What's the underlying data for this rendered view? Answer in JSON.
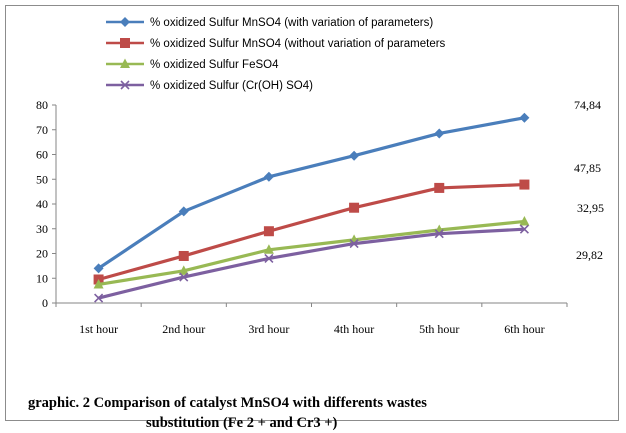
{
  "chart_data": {
    "type": "line",
    "categories": [
      "1st hour",
      "2nd hour",
      "3rd hour",
      "4th hour",
      "5th hour",
      "6th  hour"
    ],
    "ylim": [
      0,
      80
    ],
    "yticks": [
      0,
      10,
      20,
      30,
      40,
      50,
      60,
      70,
      80
    ],
    "grid": false,
    "legend_position": "top",
    "series": [
      {
        "name": "% oxidized Sulfur MnSO4 (with variation of parameters)",
        "color": "#4a7ebb",
        "marker": "diamond",
        "values": [
          14,
          37,
          51,
          59.5,
          68.5,
          74.84
        ],
        "end_label": "74,84"
      },
      {
        "name": "% oxidized Sulfur MnSO4 (without variation of parameters",
        "color": "#be4b48",
        "marker": "square",
        "values": [
          9.5,
          19,
          29,
          38.5,
          46.5,
          47.85
        ],
        "end_label": "47,85"
      },
      {
        "name": "% oxidized Sulfur FeSO4",
        "color": "#98b954",
        "marker": "triangle",
        "values": [
          7.5,
          13,
          21.5,
          25.5,
          29.5,
          32.95
        ],
        "end_label": "32,95"
      },
      {
        "name": "% oxidized Sulfur (Cr(OH) SO4)",
        "color": "#7d60a0",
        "marker": "x",
        "values": [
          2,
          10.5,
          18,
          24,
          28,
          29.82
        ],
        "end_label": "29,82"
      }
    ]
  },
  "caption": {
    "line1": "graphic. 2 Comparison of catalyst MnSO4 with differents wastes",
    "line2": "substitution (Fe 2 + and Cr3 +)"
  }
}
